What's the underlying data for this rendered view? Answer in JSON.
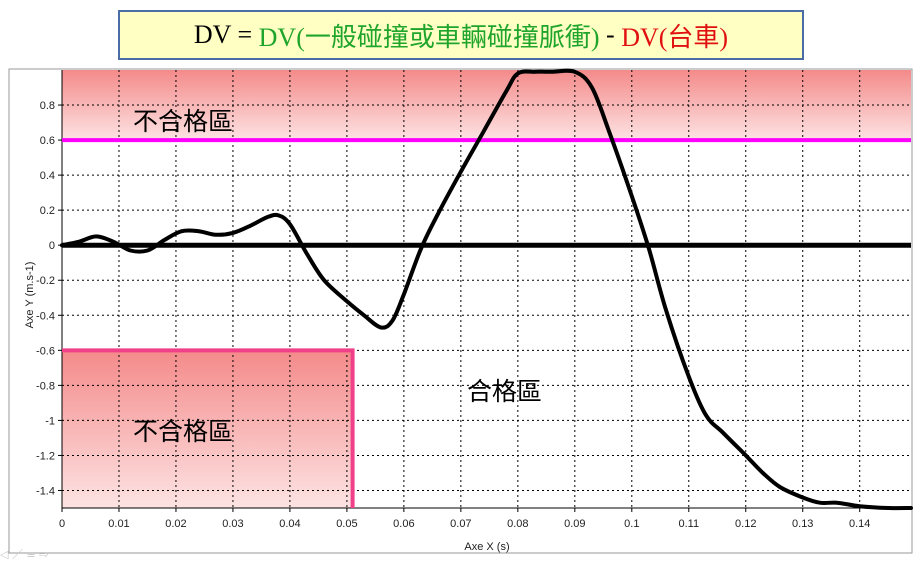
{
  "title": {
    "prefix": "DV = ",
    "part1": "DV(一般碰撞或車輛碰撞脈衝)",
    "sep": " - ",
    "part2": "DV(台車)",
    "color_prefix": "#000000",
    "color_part1": "#1fa52b",
    "color_part2": "#e01010"
  },
  "chart_data": {
    "type": "line",
    "xlabel": "Axe X (s)",
    "ylabel": "Axe Y (m.s-1)",
    "xlim": [
      0,
      0.149
    ],
    "ylim": [
      -1.5,
      1.0
    ],
    "x_ticks": [
      0,
      0.01,
      0.02,
      0.03,
      0.04,
      0.05,
      0.06,
      0.07,
      0.08,
      0.09,
      0.1,
      0.11,
      0.12,
      0.13,
      0.14
    ],
    "x_tick_labels": [
      "0",
      "0.01",
      "0.02",
      "0.03",
      "0.04",
      "0.05",
      "0.06",
      "0.07",
      "0.08",
      "0.09",
      "0.1",
      "0.11",
      "0.12",
      "0.13",
      "0.14"
    ],
    "y_ticks": [
      0.8,
      0.6,
      0.4,
      0.2,
      0,
      -0.2,
      -0.4,
      -0.6,
      -0.8,
      -1,
      -1.2,
      -1.4
    ],
    "y_tick_labels": [
      "0.8",
      "0.6",
      "0.4",
      "0.2",
      "0",
      "-0.2",
      "-0.4",
      "-0.6",
      "-0.8",
      "-1",
      "-1.2",
      "-1.4"
    ],
    "grid": true,
    "series": [
      {
        "color": "#000000",
        "x": [
          0,
          0.003,
          0.006,
          0.009,
          0.012,
          0.015,
          0.018,
          0.021,
          0.024,
          0.027,
          0.03,
          0.033,
          0.036,
          0.038,
          0.04,
          0.043,
          0.046,
          0.05,
          0.053,
          0.056,
          0.058,
          0.06,
          0.063,
          0.066,
          0.07,
          0.074,
          0.078,
          0.08,
          0.083,
          0.086,
          0.09,
          0.093,
          0.096,
          0.1,
          0.103,
          0.106,
          0.11,
          0.113,
          0.116,
          0.12,
          0.123,
          0.126,
          0.13,
          0.133,
          0.136,
          0.14,
          0.145,
          0.149
        ],
        "y": [
          0.0,
          0.02,
          0.05,
          0.02,
          -0.03,
          -0.03,
          0.03,
          0.08,
          0.08,
          0.06,
          0.07,
          0.11,
          0.16,
          0.17,
          0.12,
          -0.05,
          -0.2,
          -0.32,
          -0.4,
          -0.47,
          -0.43,
          -0.28,
          -0.02,
          0.18,
          0.42,
          0.65,
          0.88,
          0.98,
          0.99,
          0.99,
          0.99,
          0.9,
          0.65,
          0.28,
          -0.02,
          -0.37,
          -0.75,
          -0.97,
          -1.07,
          -1.2,
          -1.3,
          -1.38,
          -1.44,
          -1.47,
          -1.47,
          -1.49,
          -1.5,
          -1.5
        ]
      }
    ],
    "reference_lines": [
      {
        "y": 0.6,
        "color": "#ff00ff"
      },
      {
        "y": 0,
        "color": "#000000"
      }
    ],
    "zones": [
      {
        "label": "不合格區",
        "x": [
          0,
          0.149
        ],
        "y": [
          0.6,
          1.0
        ],
        "color": "#f08080"
      },
      {
        "label": "不合格區",
        "x": [
          0,
          0.051
        ],
        "y": [
          -1.5,
          -0.6
        ],
        "color": "#f08080"
      },
      {
        "label": "合格區"
      }
    ]
  }
}
